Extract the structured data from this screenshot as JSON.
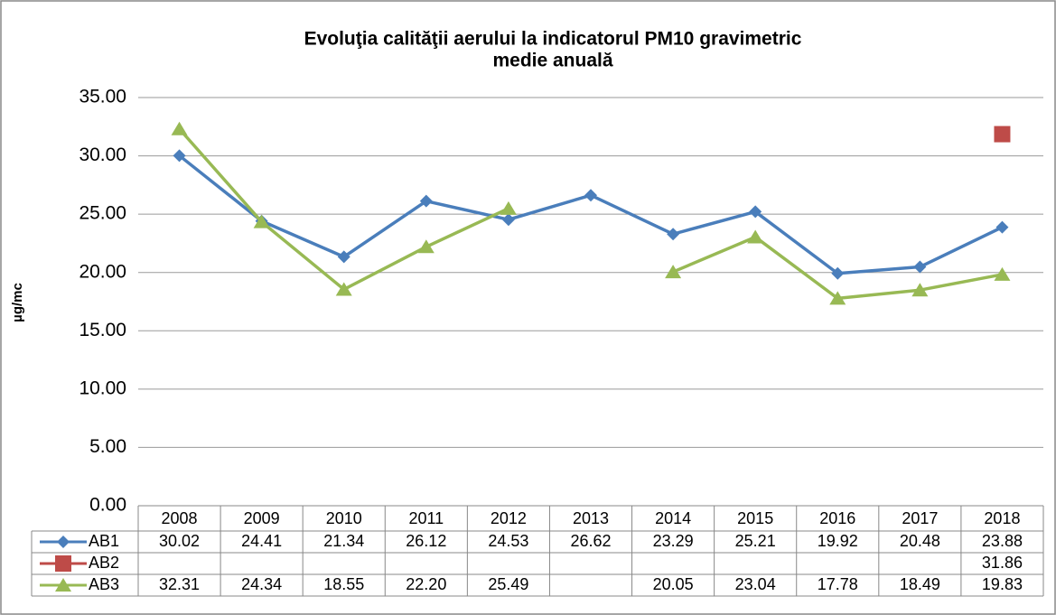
{
  "chart_data": {
    "type": "line",
    "title": "Evoluţia calităţii aerului la indicatorul PM10 gravimetric",
    "subtitle": "medie anuală",
    "y_label": "µg/mc",
    "categories": [
      "2008",
      "2009",
      "2010",
      "2011",
      "2012",
      "2013",
      "2014",
      "2015",
      "2016",
      "2017",
      "2018"
    ],
    "series": [
      {
        "name": "AB1",
        "color": "#4a7ebb",
        "marker": "diamond",
        "values": [
          30.02,
          24.41,
          21.34,
          26.12,
          24.53,
          26.62,
          23.29,
          25.21,
          19.92,
          20.48,
          23.88
        ],
        "value_labels": [
          "30.02",
          "24.41",
          "21.34",
          "26.12",
          "24.53",
          "26.62",
          "23.29",
          "25.21",
          "19.92",
          "20.48",
          "23.88"
        ]
      },
      {
        "name": "AB2",
        "color": "#be4b48",
        "marker": "square",
        "values": [
          null,
          null,
          null,
          null,
          null,
          null,
          null,
          null,
          null,
          null,
          31.86
        ],
        "value_labels": [
          null,
          null,
          null,
          null,
          null,
          null,
          null,
          null,
          null,
          null,
          "31.86"
        ]
      },
      {
        "name": "AB3",
        "color": "#98b954",
        "marker": "triangle",
        "values": [
          32.31,
          24.34,
          18.55,
          22.2,
          25.49,
          null,
          20.05,
          23.04,
          17.78,
          18.49,
          19.83
        ],
        "value_labels": [
          "32.31",
          "24.34",
          "18.55",
          "22.20",
          "25.49",
          null,
          "20.05",
          "23.04",
          "17.78",
          "18.49",
          "19.83"
        ]
      }
    ],
    "ylim": [
      0,
      35
    ],
    "yticks": [
      {
        "value": 0,
        "label": "0.00"
      },
      {
        "value": 5,
        "label": "5.00"
      },
      {
        "value": 10,
        "label": "10.00"
      },
      {
        "value": 15,
        "label": "15.00"
      },
      {
        "value": 20,
        "label": "20.00"
      },
      {
        "value": 25,
        "label": "25.00"
      },
      {
        "value": 30,
        "label": "30.00"
      },
      {
        "value": 35,
        "label": "35.00"
      }
    ],
    "grid": true
  }
}
